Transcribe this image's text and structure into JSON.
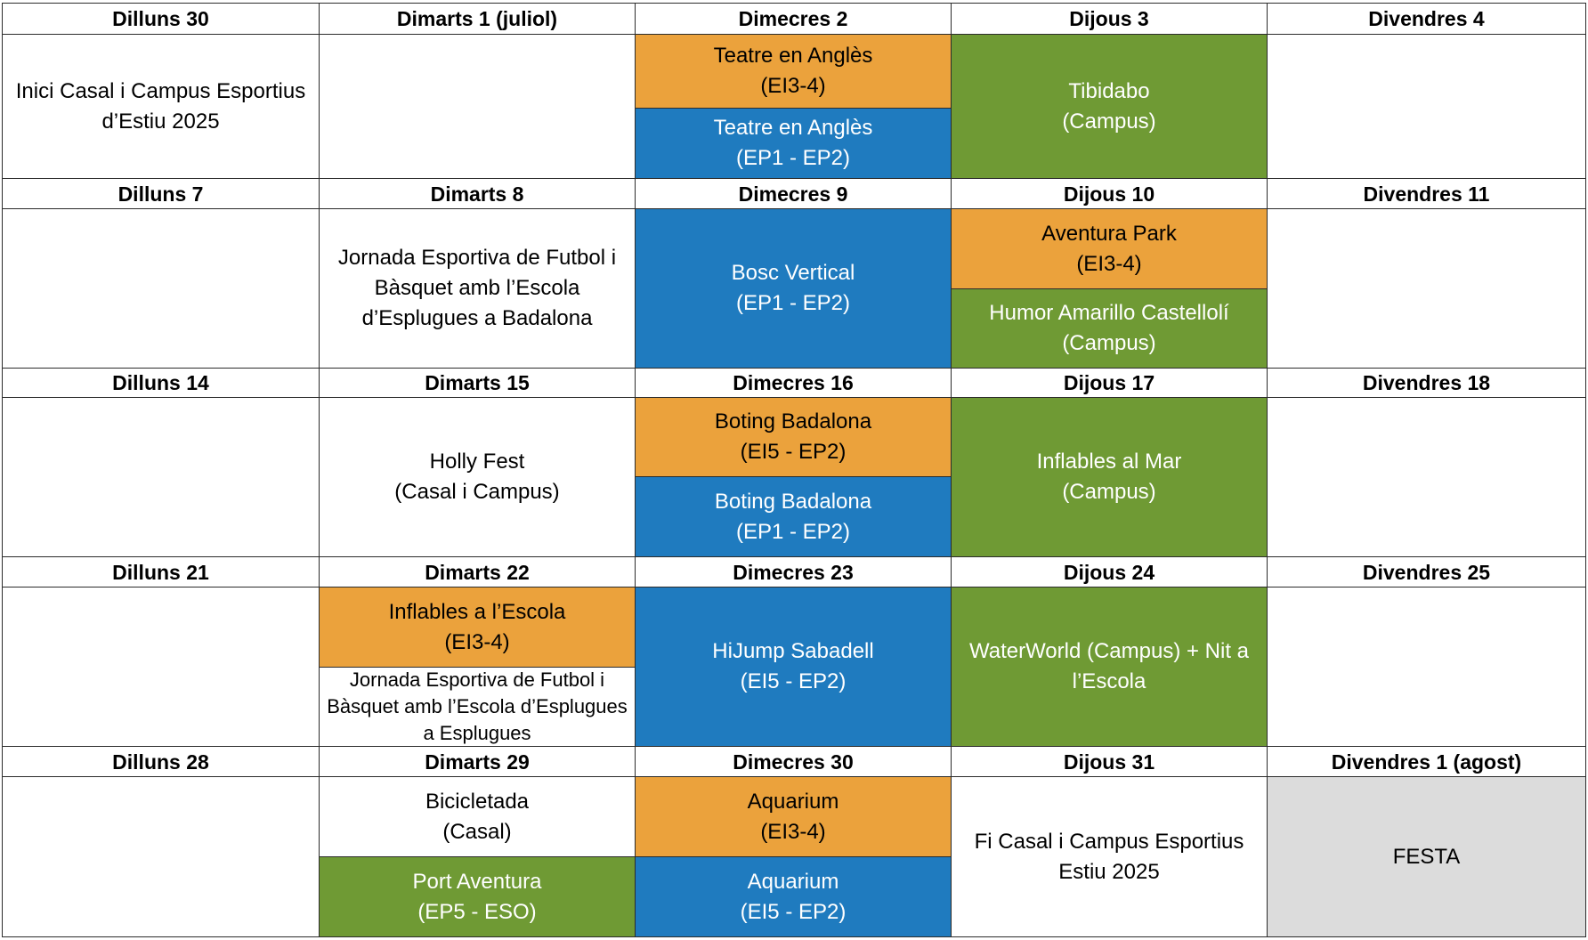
{
  "colors": {
    "ei3_4_orange": "#eba23c",
    "ep_blue": "#1f7bbf",
    "campus_green": "#6f9a34",
    "holiday_gray": "#dcdcdc",
    "grid_line": "#2b2b2b"
  },
  "weeks": [
    {
      "headers": [
        "Dilluns 30",
        "Dimarts 1 (juliol)",
        "Dimecres 2",
        "Dijous 3",
        "Divendres 4"
      ],
      "days": [
        [
          {
            "lines": [
              "Inici Casal i Campus Esportius",
              "d’Estiu 2025"
            ],
            "color": "white"
          }
        ],
        [],
        [
          {
            "lines": [
              "Teatre en Anglès",
              "(EI3-4)"
            ],
            "color": "orange"
          },
          {
            "lines": [
              "Teatre en Anglès",
              "(EP1 - EP2)"
            ],
            "color": "blue"
          }
        ],
        [
          {
            "lines": [
              "Tibidabo",
              "(Campus)"
            ],
            "color": "green"
          }
        ],
        []
      ]
    },
    {
      "headers": [
        "Dilluns 7",
        "Dimarts 8",
        "Dimecres 9",
        "Dijous 10",
        "Divendres 11"
      ],
      "days": [
        [],
        [
          {
            "lines": [
              "Jornada Esportiva de Futbol i",
              "Bàsquet amb l’Escola",
              "d’Esplugues a Badalona"
            ],
            "color": "white"
          }
        ],
        [
          {
            "lines": [
              "Bosc Vertical",
              "(EP1 - EP2)"
            ],
            "color": "blue"
          }
        ],
        [
          {
            "lines": [
              "Aventura Park",
              "(EI3-4)"
            ],
            "color": "orange"
          },
          {
            "lines": [
              "Humor Amarillo Castellolí",
              "(Campus)"
            ],
            "color": "green"
          }
        ],
        []
      ]
    },
    {
      "headers": [
        "Dilluns 14",
        "Dimarts 15",
        "Dimecres 16",
        "Dijous 17",
        "Divendres 18"
      ],
      "days": [
        [],
        [
          {
            "lines": [
              "Holly Fest",
              "(Casal i Campus)"
            ],
            "color": "white"
          }
        ],
        [
          {
            "lines": [
              "Boting Badalona",
              "(EI5 - EP2)"
            ],
            "color": "orange"
          },
          {
            "lines": [
              "Boting Badalona",
              "(EP1 - EP2)"
            ],
            "color": "blue"
          }
        ],
        [
          {
            "lines": [
              "Inflables al Mar",
              "(Campus)"
            ],
            "color": "green"
          }
        ],
        []
      ]
    },
    {
      "headers": [
        "Dilluns 21",
        "Dimarts 22",
        "Dimecres 23",
        "Dijous 24",
        "Divendres 25"
      ],
      "days": [
        [],
        [
          {
            "lines": [
              "Inflables a l’Escola",
              "(EI3-4)"
            ],
            "color": "orange"
          },
          {
            "lines": [
              "Jornada Esportiva de Futbol i",
              "Bàsquet amb l’Escola d’Esplugues",
              "a Esplugues"
            ],
            "color": "white",
            "small": true
          }
        ],
        [
          {
            "lines": [
              "HiJump Sabadell",
              "(EI5 - EP2)"
            ],
            "color": "blue"
          }
        ],
        [
          {
            "lines": [
              "WaterWorld (Campus) + Nit a",
              "l’Escola"
            ],
            "color": "green"
          }
        ],
        []
      ]
    },
    {
      "headers": [
        "Dilluns 28",
        "Dimarts 29",
        "Dimecres 30",
        "Dijous 31",
        "Divendres 1 (agost)"
      ],
      "days": [
        [],
        [
          {
            "lines": [
              "Bicicletada",
              "(Casal)"
            ],
            "color": "white"
          },
          {
            "lines": [
              "Port Aventura",
              "(EP5 - ESO)"
            ],
            "color": "green"
          }
        ],
        [
          {
            "lines": [
              "Aquarium",
              "(EI3-4)"
            ],
            "color": "orange"
          },
          {
            "lines": [
              "Aquarium",
              "(EI5 - EP2)"
            ],
            "color": "blue"
          }
        ],
        [
          {
            "lines": [
              "Fi Casal i Campus Esportius",
              "Estiu 2025"
            ],
            "color": "white"
          }
        ],
        [
          {
            "lines": [
              "FESTA"
            ],
            "color": "gray"
          }
        ]
      ]
    }
  ]
}
